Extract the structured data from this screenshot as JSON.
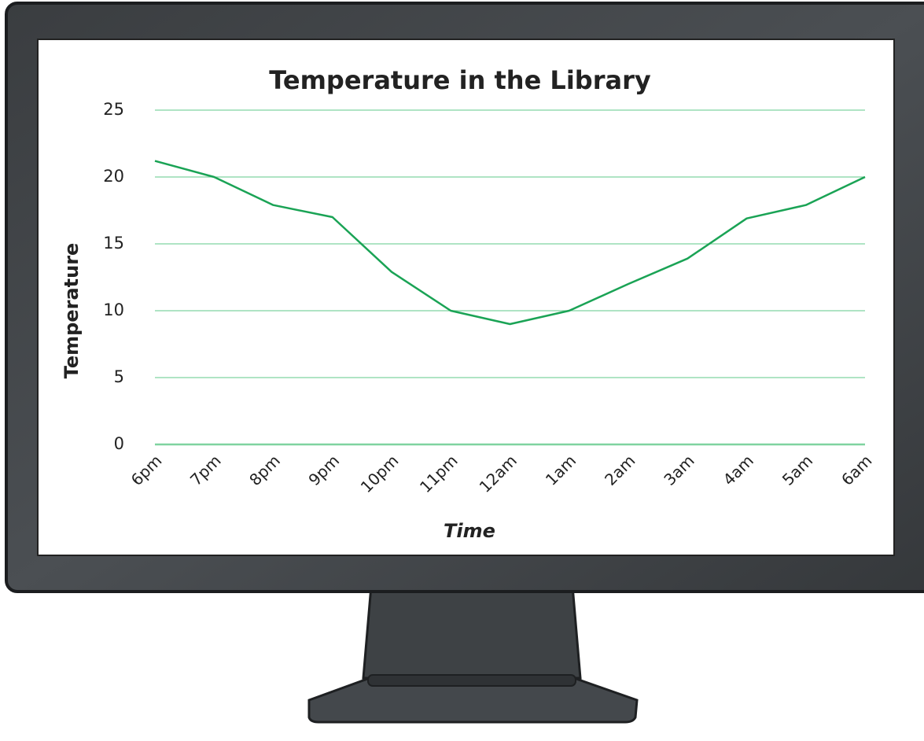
{
  "chart_data": {
    "type": "line",
    "title": "Temperature in the Library",
    "x_label": "Time",
    "y_label": "Temperature",
    "categories": [
      "6pm",
      "7pm",
      "8pm",
      "9pm",
      "10pm",
      "11pm",
      "12am",
      "1am",
      "2am",
      "3am",
      "4am",
      "5am",
      "6am"
    ],
    "series": [
      {
        "name": "Temperature",
        "color": "#1aa355",
        "values": [
          21.2,
          20,
          17.9,
          17,
          12.9,
          10,
          9,
          10,
          12,
          13.9,
          16.9,
          17.9,
          20
        ]
      }
    ],
    "ylim": [
      0,
      25
    ],
    "yticks": [
      0,
      5,
      10,
      15,
      20,
      25
    ],
    "grid": true,
    "grid_color": "#7fd3a0"
  }
}
